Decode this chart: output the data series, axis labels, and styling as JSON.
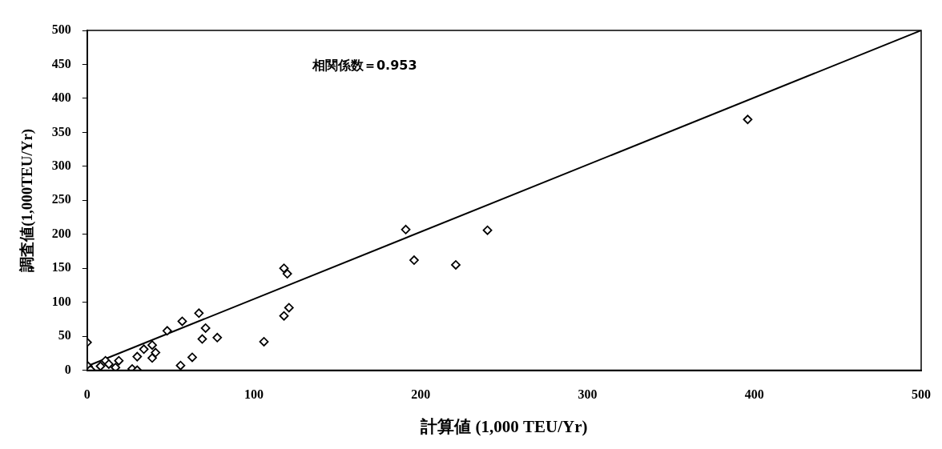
{
  "chart_data": {
    "type": "scatter",
    "xlabel": "計算値 (1,000 TEU/Yr)",
    "ylabel": "調査値(1,000TEU/Yr)",
    "annotations": [
      "相関係数＝0.953"
    ],
    "marker": "diamond",
    "grid": false,
    "legend": false,
    "xlim": [
      0,
      500
    ],
    "ylim": [
      0,
      500
    ],
    "xticks": [
      0,
      100,
      200,
      300,
      400,
      500
    ],
    "yticks": [
      0,
      50,
      100,
      150,
      200,
      250,
      300,
      350,
      400,
      450,
      500
    ],
    "series": [
      {
        "color": "#000000",
        "x": [
          0,
          0.5,
          2,
          6,
          8,
          11,
          13,
          17,
          19,
          27,
          30,
          30,
          34,
          39,
          39,
          41,
          48,
          57,
          67,
          71,
          69,
          78,
          56,
          63,
          106,
          118,
          120,
          121,
          118,
          191,
          196,
          221,
          240,
          396
        ],
        "values": [
          41,
          6,
          1,
          null,
          6,
          14,
          9,
          4,
          14,
          2,
          0,
          20,
          31,
          18,
          37,
          26,
          58,
          72,
          84,
          62,
          46,
          48,
          7,
          19,
          42,
          150,
          142,
          92,
          80,
          207,
          162,
          155,
          206,
          369
        ]
      },
      {
        "type": "line",
        "color": "#000000",
        "marker": "none",
        "x": [
          0,
          500
        ],
        "values": [
          6,
          500
        ]
      }
    ]
  }
}
